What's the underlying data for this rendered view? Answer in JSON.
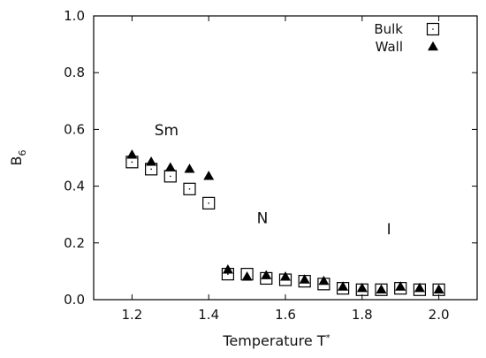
{
  "chart_data": {
    "type": "scatter",
    "xlabel": "Temperature",
    "xlabel_symbol": "T",
    "xlabel_sup": "*",
    "ylabel": "B",
    "ylabel_sub": "6",
    "xlim": [
      1.1,
      2.1
    ],
    "ylim": [
      0.0,
      1.0
    ],
    "xticks": [
      1.2,
      1.4,
      1.6,
      1.8,
      2.0
    ],
    "xtick_labels": [
      "1.2",
      "1.4",
      "1.6",
      "1.8",
      "2.0"
    ],
    "yticks": [
      0.0,
      0.2,
      0.4,
      0.6,
      0.8,
      1.0
    ],
    "ytick_labels": [
      "0.0",
      "0.2",
      "0.4",
      "0.6",
      "0.8",
      "1.0"
    ],
    "grid": false,
    "legend": "top-right",
    "annotations": [
      {
        "text": "Sm",
        "x": 1.29,
        "y": 0.58
      },
      {
        "text": "N",
        "x": 1.54,
        "y": 0.27
      },
      {
        "text": "I",
        "x": 1.87,
        "y": 0.23
      }
    ],
    "series": [
      {
        "name": "Bulk",
        "marker": "open-square",
        "color": "#000000",
        "x": [
          1.2,
          1.25,
          1.3,
          1.35,
          1.4,
          1.45,
          1.5,
          1.55,
          1.6,
          1.65,
          1.7,
          1.75,
          1.8,
          1.85,
          1.9,
          1.95,
          2.0
        ],
        "y": [
          0.485,
          0.46,
          0.435,
          0.39,
          0.34,
          0.09,
          0.09,
          0.075,
          0.07,
          0.065,
          0.055,
          0.04,
          0.035,
          0.035,
          0.04,
          0.035,
          0.035
        ]
      },
      {
        "name": "Wall",
        "marker": "filled-triangle",
        "color": "#000000",
        "x": [
          1.2,
          1.25,
          1.3,
          1.35,
          1.4,
          1.45,
          1.5,
          1.55,
          1.6,
          1.65,
          1.7,
          1.75,
          1.8,
          1.85,
          1.9,
          1.95,
          2.0
        ],
        "y": [
          0.51,
          0.485,
          0.465,
          0.46,
          0.435,
          0.105,
          0.08,
          0.085,
          0.08,
          0.07,
          0.065,
          0.045,
          0.04,
          0.035,
          0.045,
          0.04,
          0.035
        ]
      }
    ]
  }
}
